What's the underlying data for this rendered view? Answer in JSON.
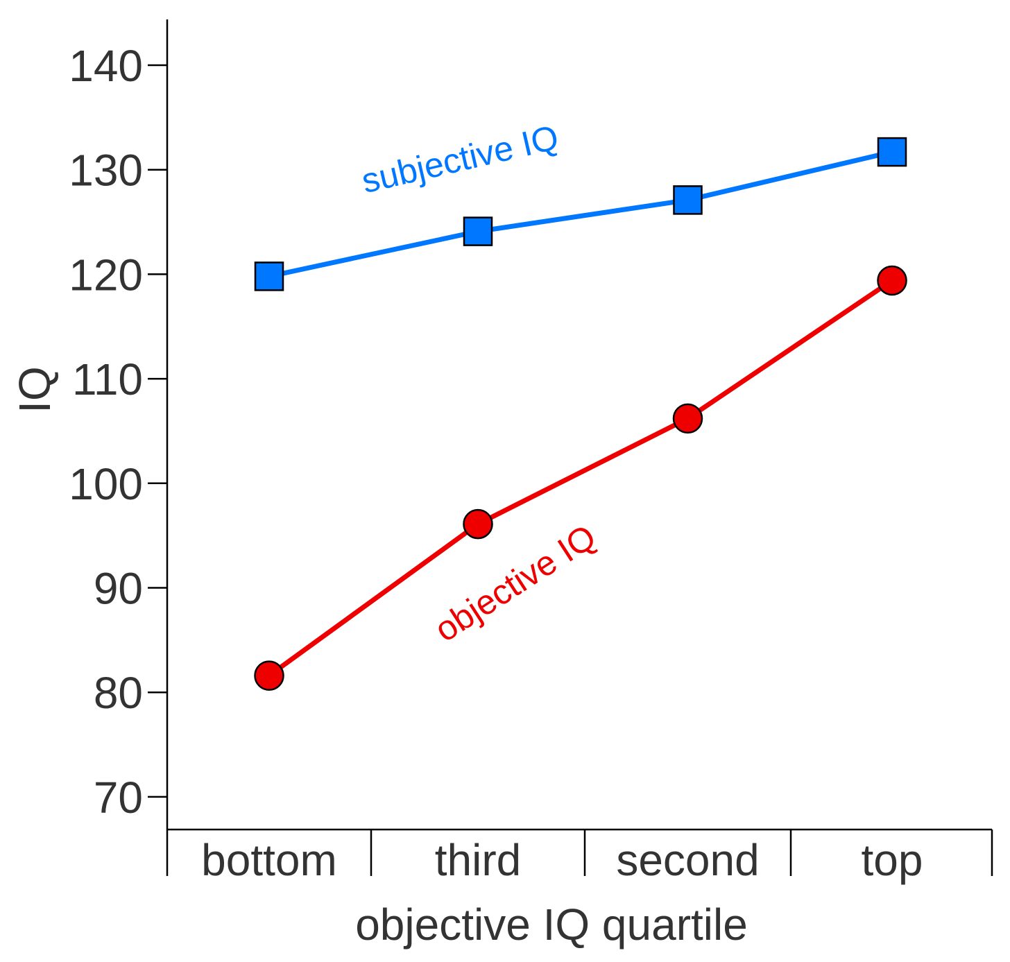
{
  "chart_data": {
    "type": "line",
    "title": "",
    "xlabel": "objective IQ quartile",
    "ylabel": "IQ",
    "categories": [
      "bottom",
      "third",
      "second",
      "top"
    ],
    "ylim": [
      66,
      144
    ],
    "yticks": [
      70,
      80,
      90,
      100,
      110,
      120,
      130,
      140
    ],
    "grid": false,
    "legend": "inline labels",
    "series": [
      {
        "name": "subjective IQ",
        "values": [
          119.8,
          124.1,
          127.1,
          131.7
        ],
        "color": "#0077ff",
        "marker": "square"
      },
      {
        "name": "objective IQ",
        "values": [
          81.6,
          96.1,
          106.2,
          119.4
        ],
        "color": "#ee0000",
        "marker": "circle"
      }
    ]
  }
}
